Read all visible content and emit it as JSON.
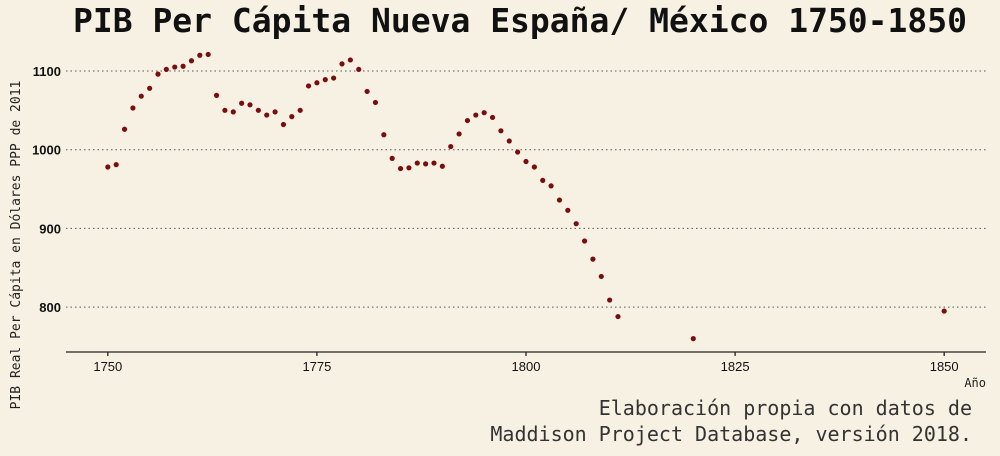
{
  "chart_data": {
    "type": "scatter",
    "title": "PIB Per Cápita Nueva España/ México 1750-1850",
    "xlabel": "Año",
    "ylabel": "PIB Real Per Cápita en Dólares PPP de 2011",
    "caption_line1": "Elaboración propia con datos de",
    "caption_line2": "Maddison Project Database, versión 2018.",
    "xlim": [
      1745,
      1855
    ],
    "ylim": [
      743,
      1133
    ],
    "x_ticks": [
      1750,
      1775,
      1800,
      1825,
      1850
    ],
    "y_ticks": [
      800,
      900,
      1000,
      1100
    ],
    "grid": "horizontal-dotted",
    "marker_color": "#7a0e0e",
    "points": [
      [
        1750,
        978
      ],
      [
        1751,
        981
      ],
      [
        1752,
        1026
      ],
      [
        1753,
        1053
      ],
      [
        1754,
        1068
      ],
      [
        1755,
        1078
      ],
      [
        1756,
        1096
      ],
      [
        1757,
        1102
      ],
      [
        1758,
        1105
      ],
      [
        1759,
        1106
      ],
      [
        1760,
        1113
      ],
      [
        1761,
        1120
      ],
      [
        1762,
        1121
      ],
      [
        1763,
        1069
      ],
      [
        1764,
        1050
      ],
      [
        1765,
        1048
      ],
      [
        1766,
        1059
      ],
      [
        1767,
        1057
      ],
      [
        1768,
        1050
      ],
      [
        1769,
        1044
      ],
      [
        1770,
        1048
      ],
      [
        1771,
        1032
      ],
      [
        1772,
        1042
      ],
      [
        1773,
        1050
      ],
      [
        1774,
        1081
      ],
      [
        1775,
        1085
      ],
      [
        1776,
        1089
      ],
      [
        1777,
        1091
      ],
      [
        1778,
        1109
      ],
      [
        1779,
        1114
      ],
      [
        1780,
        1102
      ],
      [
        1781,
        1074
      ],
      [
        1782,
        1060
      ],
      [
        1783,
        1019
      ],
      [
        1784,
        989
      ],
      [
        1785,
        976
      ],
      [
        1786,
        977
      ],
      [
        1787,
        983
      ],
      [
        1788,
        982
      ],
      [
        1789,
        983
      ],
      [
        1790,
        979
      ],
      [
        1791,
        1004
      ],
      [
        1792,
        1020
      ],
      [
        1793,
        1037
      ],
      [
        1794,
        1044
      ],
      [
        1795,
        1047
      ],
      [
        1796,
        1041
      ],
      [
        1797,
        1024
      ],
      [
        1798,
        1011
      ],
      [
        1799,
        997
      ],
      [
        1800,
        985
      ],
      [
        1801,
        978
      ],
      [
        1802,
        961
      ],
      [
        1803,
        954
      ],
      [
        1804,
        936
      ],
      [
        1805,
        923
      ],
      [
        1806,
        906
      ],
      [
        1807,
        884
      ],
      [
        1808,
        861
      ],
      [
        1809,
        839
      ],
      [
        1810,
        809
      ],
      [
        1811,
        788
      ],
      [
        1820,
        760
      ],
      [
        1850,
        795
      ]
    ]
  }
}
